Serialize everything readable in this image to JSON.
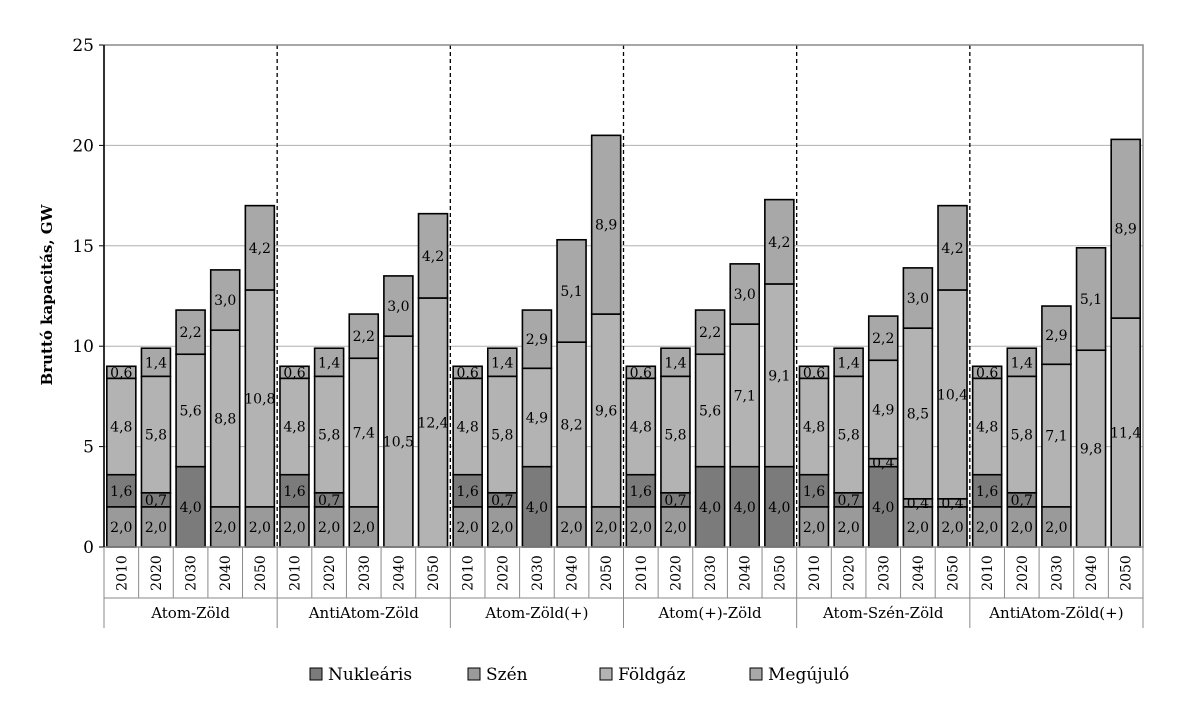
{
  "chart_data": {
    "type": "bar",
    "stacked": true,
    "ylabel": "Bruttó kapacitás, GW",
    "ylim": [
      0,
      25
    ],
    "yticks": [
      0,
      5,
      10,
      15,
      20,
      25
    ],
    "grid": true,
    "legend_position": "bottom",
    "years": [
      "2010",
      "2020",
      "2030",
      "2040",
      "2050"
    ],
    "legend": [
      {
        "name": "Nukleáris",
        "color": "#7b7b7b"
      },
      {
        "name": "Szén",
        "color": "#9a9a9a"
      },
      {
        "name": "Földgáz",
        "color": "#b3b3b3"
      },
      {
        "name": "Megújuló",
        "color": "#a8a8a8"
      }
    ],
    "scenarios": [
      {
        "name": "Atom-Zöld",
        "bars": [
          {
            "year": "2010",
            "segments": [
              {
                "series": "Szén",
                "value": 2.0,
                "label": "2,0"
              },
              {
                "series": "Nukleáris",
                "value": 1.6,
                "label": "1,6"
              },
              {
                "series": "Földgáz",
                "value": 4.8,
                "label": "4,8"
              },
              {
                "series": "Megújuló",
                "value": 0.6,
                "label": "0,6"
              }
            ]
          },
          {
            "year": "2020",
            "segments": [
              {
                "series": "Szén",
                "value": 2.0,
                "label": "2,0"
              },
              {
                "series": "Nukleáris",
                "value": 0.7,
                "label": "0,7"
              },
              {
                "series": "Földgáz",
                "value": 5.8,
                "label": "5,8"
              },
              {
                "series": "Megújuló",
                "value": 1.4,
                "label": "1,4"
              }
            ]
          },
          {
            "year": "2030",
            "segments": [
              {
                "series": "Nukleáris",
                "value": 4.0,
                "label": "4,0"
              },
              {
                "series": "Földgáz",
                "value": 5.6,
                "label": "5,6"
              },
              {
                "series": "Megújuló",
                "value": 2.2,
                "label": "2,2"
              }
            ]
          },
          {
            "year": "2040",
            "segments": [
              {
                "series": "Szén",
                "value": 2.0,
                "label": "2,0"
              },
              {
                "series": "Földgáz",
                "value": 8.8,
                "label": "8,8"
              },
              {
                "series": "Megújuló",
                "value": 3.0,
                "label": "3,0"
              }
            ]
          },
          {
            "year": "2050",
            "segments": [
              {
                "series": "Szén",
                "value": 2.0,
                "label": "2,0"
              },
              {
                "series": "Földgáz",
                "value": 10.8,
                "label": "10,8"
              },
              {
                "series": "Megújuló",
                "value": 4.2,
                "label": "4,2"
              }
            ]
          }
        ]
      },
      {
        "name": "AntiAtom-Zöld",
        "bars": [
          {
            "year": "2010",
            "segments": [
              {
                "series": "Szén",
                "value": 2.0,
                "label": "2,0"
              },
              {
                "series": "Nukleáris",
                "value": 1.6,
                "label": "1,6"
              },
              {
                "series": "Földgáz",
                "value": 4.8,
                "label": "4,8"
              },
              {
                "series": "Megújuló",
                "value": 0.6,
                "label": "0,6"
              }
            ]
          },
          {
            "year": "2020",
            "segments": [
              {
                "series": "Szén",
                "value": 2.0,
                "label": "2,0"
              },
              {
                "series": "Nukleáris",
                "value": 0.7,
                "label": "0,7"
              },
              {
                "series": "Földgáz",
                "value": 5.8,
                "label": "5,8"
              },
              {
                "series": "Megújuló",
                "value": 1.4,
                "label": "1,4"
              }
            ]
          },
          {
            "year": "2030",
            "segments": [
              {
                "series": "Szén",
                "value": 2.0,
                "label": "2,0"
              },
              {
                "series": "Földgáz",
                "value": 7.4,
                "label": "7,4"
              },
              {
                "series": "Megújuló",
                "value": 2.2,
                "label": "2,2"
              }
            ]
          },
          {
            "year": "2040",
            "segments": [
              {
                "series": "Földgáz",
                "value": 10.5,
                "label": "10,5"
              },
              {
                "series": "Megújuló",
                "value": 3.0,
                "label": "3,0"
              }
            ]
          },
          {
            "year": "2050",
            "segments": [
              {
                "series": "Földgáz",
                "value": 12.4,
                "label": "12,4"
              },
              {
                "series": "Megújuló",
                "value": 4.2,
                "label": "4,2"
              }
            ]
          }
        ]
      },
      {
        "name": "Atom-Zöld(+)",
        "bars": [
          {
            "year": "2010",
            "segments": [
              {
                "series": "Szén",
                "value": 2.0,
                "label": "2,0"
              },
              {
                "series": "Nukleáris",
                "value": 1.6,
                "label": "1,6"
              },
              {
                "series": "Földgáz",
                "value": 4.8,
                "label": "4,8"
              },
              {
                "series": "Megújuló",
                "value": 0.6,
                "label": "0,6"
              }
            ]
          },
          {
            "year": "2020",
            "segments": [
              {
                "series": "Szén",
                "value": 2.0,
                "label": "2,0"
              },
              {
                "series": "Nukleáris",
                "value": 0.7,
                "label": "0,7"
              },
              {
                "series": "Földgáz",
                "value": 5.8,
                "label": "5,8"
              },
              {
                "series": "Megújuló",
                "value": 1.4,
                "label": "1,4"
              }
            ]
          },
          {
            "year": "2030",
            "segments": [
              {
                "series": "Nukleáris",
                "value": 4.0,
                "label": "4,0"
              },
              {
                "series": "Földgáz",
                "value": 4.9,
                "label": "4,9"
              },
              {
                "series": "Megújuló",
                "value": 2.9,
                "label": "2,9"
              }
            ]
          },
          {
            "year": "2040",
            "segments": [
              {
                "series": "Szén",
                "value": 2.0,
                "label": "2,0"
              },
              {
                "series": "Földgáz",
                "value": 8.2,
                "label": "8,2"
              },
              {
                "series": "Megújuló",
                "value": 5.1,
                "label": "5,1"
              }
            ]
          },
          {
            "year": "2050",
            "segments": [
              {
                "series": "Szén",
                "value": 2.0,
                "label": "2,0"
              },
              {
                "series": "Földgáz",
                "value": 9.6,
                "label": "9,6"
              },
              {
                "series": "Megújuló",
                "value": 8.9,
                "label": "8,9"
              }
            ]
          }
        ]
      },
      {
        "name": "Atom(+)-Zöld",
        "bars": [
          {
            "year": "2010",
            "segments": [
              {
                "series": "Szén",
                "value": 2.0,
                "label": "2,0"
              },
              {
                "series": "Nukleáris",
                "value": 1.6,
                "label": "1,6"
              },
              {
                "series": "Földgáz",
                "value": 4.8,
                "label": "4,8"
              },
              {
                "series": "Megújuló",
                "value": 0.6,
                "label": "0,6"
              }
            ]
          },
          {
            "year": "2020",
            "segments": [
              {
                "series": "Szén",
                "value": 2.0,
                "label": "2,0"
              },
              {
                "series": "Nukleáris",
                "value": 0.7,
                "label": "0,7"
              },
              {
                "series": "Földgáz",
                "value": 5.8,
                "label": "5,8"
              },
              {
                "series": "Megújuló",
                "value": 1.4,
                "label": "1,4"
              }
            ]
          },
          {
            "year": "2030",
            "segments": [
              {
                "series": "Nukleáris",
                "value": 4.0,
                "label": "4,0"
              },
              {
                "series": "Földgáz",
                "value": 5.6,
                "label": "5,6"
              },
              {
                "series": "Megújuló",
                "value": 2.2,
                "label": "2,2"
              }
            ]
          },
          {
            "year": "2040",
            "segments": [
              {
                "series": "Nukleáris",
                "value": 4.0,
                "label": "4,0"
              },
              {
                "series": "Földgáz",
                "value": 7.1,
                "label": "7,1"
              },
              {
                "series": "Megújuló",
                "value": 3.0,
                "label": "3,0"
              }
            ]
          },
          {
            "year": "2050",
            "segments": [
              {
                "series": "Nukleáris",
                "value": 4.0,
                "label": "4,0"
              },
              {
                "series": "Földgáz",
                "value": 9.1,
                "label": "9,1"
              },
              {
                "series": "Megújuló",
                "value": 4.2,
                "label": "4,2"
              }
            ]
          }
        ]
      },
      {
        "name": "Atom-Szén-Zöld",
        "bars": [
          {
            "year": "2010",
            "segments": [
              {
                "series": "Szén",
                "value": 2.0,
                "label": "2,0"
              },
              {
                "series": "Nukleáris",
                "value": 1.6,
                "label": "1,6"
              },
              {
                "series": "Földgáz",
                "value": 4.8,
                "label": "4,8"
              },
              {
                "series": "Megújuló",
                "value": 0.6,
                "label": "0,6"
              }
            ]
          },
          {
            "year": "2020",
            "segments": [
              {
                "series": "Szén",
                "value": 2.0,
                "label": "2,0"
              },
              {
                "series": "Nukleáris",
                "value": 0.7,
                "label": "0,7"
              },
              {
                "series": "Földgáz",
                "value": 5.8,
                "label": "5,8"
              },
              {
                "series": "Megújuló",
                "value": 1.4,
                "label": "1,4"
              }
            ]
          },
          {
            "year": "2030",
            "segments": [
              {
                "series": "Nukleáris",
                "value": 4.0,
                "label": "4,0"
              },
              {
                "series": "Szén",
                "value": 0.4,
                "label": "0,4"
              },
              {
                "series": "Földgáz",
                "value": 4.9,
                "label": "4,9"
              },
              {
                "series": "Megújuló",
                "value": 2.2,
                "label": "2,2"
              }
            ]
          },
          {
            "year": "2040",
            "segments": [
              {
                "series": "Szén",
                "value": 2.0,
                "label": "2,0"
              },
              {
                "series": "Szén",
                "value": 0.4,
                "label": "0,4"
              },
              {
                "series": "Földgáz",
                "value": 8.5,
                "label": "8,5"
              },
              {
                "series": "Megújuló",
                "value": 3.0,
                "label": "3,0"
              }
            ]
          },
          {
            "year": "2050",
            "segments": [
              {
                "series": "Szén",
                "value": 2.0,
                "label": "2,0"
              },
              {
                "series": "Szén",
                "value": 0.4,
                "label": "0,4"
              },
              {
                "series": "Földgáz",
                "value": 10.4,
                "label": "10,4"
              },
              {
                "series": "Megújuló",
                "value": 4.2,
                "label": "4,2"
              }
            ]
          }
        ]
      },
      {
        "name": "AntiAtom-Zöld(+)",
        "bars": [
          {
            "year": "2010",
            "segments": [
              {
                "series": "Szén",
                "value": 2.0,
                "label": "2,0"
              },
              {
                "series": "Nukleáris",
                "value": 1.6,
                "label": "1,6"
              },
              {
                "series": "Földgáz",
                "value": 4.8,
                "label": "4,8"
              },
              {
                "series": "Megújuló",
                "value": 0.6,
                "label": "0,6"
              }
            ]
          },
          {
            "year": "2020",
            "segments": [
              {
                "series": "Szén",
                "value": 2.0,
                "label": "2,0"
              },
              {
                "series": "Nukleáris",
                "value": 0.7,
                "label": "0,7"
              },
              {
                "series": "Földgáz",
                "value": 5.8,
                "label": "5,8"
              },
              {
                "series": "Megújuló",
                "value": 1.4,
                "label": "1,4"
              }
            ]
          },
          {
            "year": "2030",
            "segments": [
              {
                "series": "Szén",
                "value": 2.0,
                "label": "2,0"
              },
              {
                "series": "Földgáz",
                "value": 7.1,
                "label": "7,1"
              },
              {
                "series": "Megújuló",
                "value": 2.9,
                "label": "2,9"
              }
            ]
          },
          {
            "year": "2040",
            "segments": [
              {
                "series": "Földgáz",
                "value": 9.8,
                "label": "9,8"
              },
              {
                "series": "Megújuló",
                "value": 5.1,
                "label": "5,1"
              }
            ]
          },
          {
            "year": "2050",
            "segments": [
              {
                "series": "Földgáz",
                "value": 11.4,
                "label": "11,4"
              },
              {
                "series": "Megújuló",
                "value": 8.9,
                "label": "8,9"
              }
            ]
          }
        ]
      }
    ]
  }
}
